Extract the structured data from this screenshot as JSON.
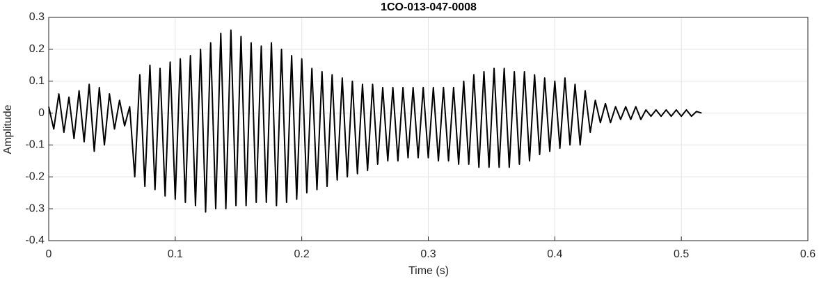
{
  "chart_data": {
    "type": "line",
    "title": "1CO-013-047-0008",
    "xlabel": "Time (s)",
    "ylabel": "Amplitude",
    "x": [
      0,
      0.004,
      0.008,
      0.012,
      0.016,
      0.02,
      0.024,
      0.028,
      0.032,
      0.036,
      0.04,
      0.044,
      0.048,
      0.052,
      0.056,
      0.06,
      0.064,
      0.068,
      0.072,
      0.076,
      0.08,
      0.084,
      0.088,
      0.092,
      0.096,
      0.1,
      0.104,
      0.108,
      0.112,
      0.116,
      0.12,
      0.124,
      0.128,
      0.132,
      0.136,
      0.14,
      0.144,
      0.148,
      0.152,
      0.156,
      0.16,
      0.164,
      0.168,
      0.172,
      0.176,
      0.18,
      0.184,
      0.188,
      0.192,
      0.196,
      0.2,
      0.204,
      0.208,
      0.212,
      0.216,
      0.22,
      0.224,
      0.228,
      0.232,
      0.236,
      0.24,
      0.244,
      0.248,
      0.252,
      0.256,
      0.26,
      0.264,
      0.268,
      0.272,
      0.276,
      0.28,
      0.284,
      0.288,
      0.292,
      0.296,
      0.3,
      0.304,
      0.308,
      0.312,
      0.316,
      0.32,
      0.324,
      0.328,
      0.332,
      0.336,
      0.34,
      0.344,
      0.348,
      0.352,
      0.356,
      0.36,
      0.364,
      0.368,
      0.372,
      0.376,
      0.38,
      0.384,
      0.388,
      0.392,
      0.396,
      0.4,
      0.404,
      0.408,
      0.412,
      0.416,
      0.42,
      0.424,
      0.428,
      0.432,
      0.436,
      0.44,
      0.444,
      0.448,
      0.452,
      0.456,
      0.46,
      0.464,
      0.468,
      0.472,
      0.476,
      0.48,
      0.484,
      0.488,
      0.492,
      0.496,
      0.5,
      0.504,
      0.508,
      0.512,
      0.516
    ],
    "values": [
      0.02,
      -0.05,
      0.06,
      -0.06,
      0.05,
      -0.08,
      0.07,
      -0.09,
      0.09,
      -0.12,
      0.08,
      -0.1,
      0.06,
      -0.05,
      0.04,
      -0.04,
      0.02,
      -0.2,
      0.12,
      -0.23,
      0.15,
      -0.24,
      0.14,
      -0.26,
      0.16,
      -0.27,
      0.17,
      -0.28,
      0.18,
      -0.29,
      0.2,
      -0.31,
      0.22,
      -0.3,
      0.25,
      -0.3,
      0.26,
      -0.29,
      0.24,
      -0.29,
      0.22,
      -0.28,
      0.21,
      -0.28,
      0.22,
      -0.29,
      0.2,
      -0.28,
      0.18,
      -0.27,
      0.17,
      -0.25,
      0.14,
      -0.24,
      0.13,
      -0.23,
      0.12,
      -0.21,
      0.11,
      -0.2,
      0.1,
      -0.19,
      0.09,
      -0.18,
      0.09,
      -0.16,
      0.08,
      -0.15,
      0.08,
      -0.15,
      0.08,
      -0.14,
      0.08,
      -0.14,
      0.08,
      -0.14,
      0.08,
      -0.15,
      0.08,
      -0.15,
      0.08,
      -0.16,
      0.1,
      -0.16,
      0.12,
      -0.17,
      0.13,
      -0.17,
      0.14,
      -0.17,
      0.14,
      -0.17,
      0.13,
      -0.16,
      0.13,
      -0.15,
      0.12,
      -0.13,
      0.11,
      -0.12,
      0.1,
      -0.11,
      0.11,
      -0.1,
      0.09,
      -0.1,
      0.07,
      -0.06,
      0.04,
      -0.03,
      0.03,
      -0.03,
      0.02,
      -0.02,
      0.02,
      -0.02,
      0.02,
      -0.02,
      0.01,
      -0.01,
      0.01,
      -0.01,
      0.01,
      -0.01,
      0.01,
      -0.01,
      0.01,
      -0.01,
      0.005,
      0
    ],
    "color": "#000000",
    "xlim": [
      0,
      0.6
    ],
    "xticks": [
      0,
      0.1,
      0.2,
      0.3,
      0.4,
      0.5,
      0.6
    ],
    "ylim": [
      -0.4,
      0.3
    ],
    "yticks": [
      -0.4,
      -0.3,
      -0.2,
      -0.1,
      0,
      0.1,
      0.2,
      0.3
    ],
    "grid": true
  }
}
